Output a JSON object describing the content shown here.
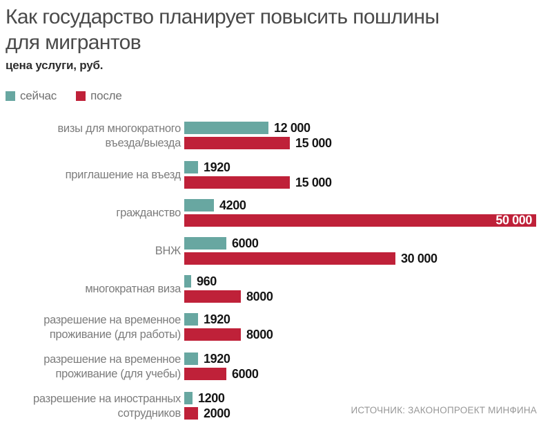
{
  "chart_data": {
    "type": "bar",
    "orientation": "horizontal",
    "title": "Как государство планирует повысить пошлины для мигрантов",
    "subtitle": "цена услуги, руб.",
    "value_unit": "руб.",
    "xlim": [
      0,
      50000
    ],
    "grid": false,
    "legend_position": "top-left",
    "series": [
      {
        "key": "now",
        "name": "сейчас",
        "color": "#68a7a1"
      },
      {
        "key": "after",
        "name": "после",
        "color": "#bf2139"
      }
    ],
    "groups": [
      {
        "label": "визы для многократного въезда/выезда",
        "label_lines": [
          "визы для многократного",
          "въезда/выезда"
        ],
        "values": {
          "now": 12000,
          "after": 15000
        },
        "value_labels": {
          "now": "12 000",
          "after": "15 000"
        },
        "after_label_inside": false
      },
      {
        "label": "приглашение на въезд",
        "label_lines": [
          "приглашение на въезд"
        ],
        "values": {
          "now": 1920,
          "after": 15000
        },
        "value_labels": {
          "now": "1920",
          "after": "15 000"
        },
        "after_label_inside": false
      },
      {
        "label": "гражданство",
        "label_lines": [
          "гражданство"
        ],
        "values": {
          "now": 4200,
          "after": 50000
        },
        "value_labels": {
          "now": "4200",
          "after": "50 000"
        },
        "after_label_inside": true
      },
      {
        "label": "ВНЖ",
        "label_lines": [
          "ВНЖ"
        ],
        "values": {
          "now": 6000,
          "after": 30000
        },
        "value_labels": {
          "now": "6000",
          "after": "30 000"
        },
        "after_label_inside": false
      },
      {
        "label": "многократная виза",
        "label_lines": [
          "многократная виза"
        ],
        "values": {
          "now": 960,
          "after": 8000
        },
        "value_labels": {
          "now": "960",
          "after": "8000"
        },
        "after_label_inside": false
      },
      {
        "label": "разрешение на временное проживание (для работы)",
        "label_lines": [
          "разрешение на временное",
          "проживание (для работы)"
        ],
        "values": {
          "now": 1920,
          "after": 8000
        },
        "value_labels": {
          "now": "1920",
          "after": "8000"
        },
        "after_label_inside": false
      },
      {
        "label": "разрешение на временное проживание (для учебы)",
        "label_lines": [
          "разрешение на временное",
          "проживание (для учебы)"
        ],
        "values": {
          "now": 1920,
          "after": 6000
        },
        "value_labels": {
          "now": "1920",
          "after": "6000"
        },
        "after_label_inside": false
      },
      {
        "label": "разрешение на иностранных сотрудников",
        "label_lines": [
          "разрешение на иностранных",
          "сотрудников"
        ],
        "values": {
          "now": 1200,
          "after": 2000
        },
        "value_labels": {
          "now": "1200",
          "after": "2000"
        },
        "after_label_inside": false
      }
    ],
    "source": "ИСТОЧНИК: ЗАКОНОПРОЕКТ МИНФИНА"
  }
}
